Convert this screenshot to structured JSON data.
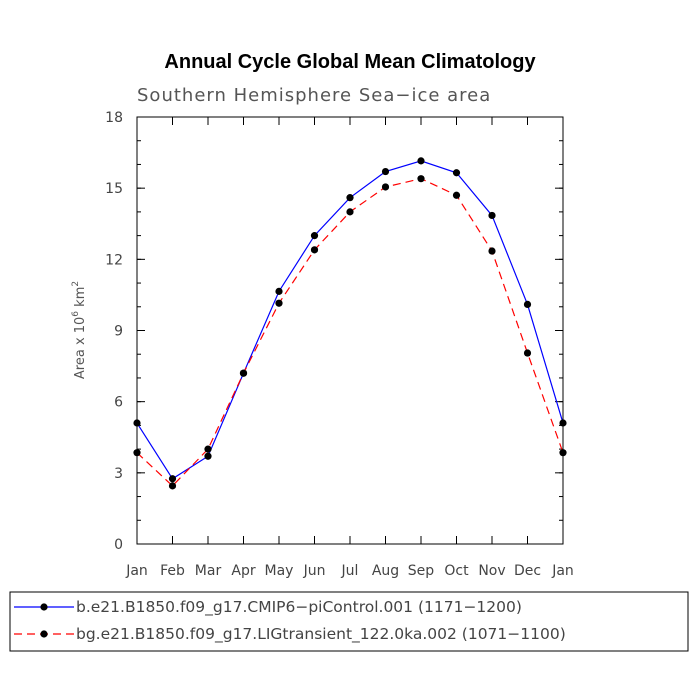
{
  "chart_data": {
    "type": "line",
    "title": "Annual Cycle Global Mean Climatology",
    "subtitle": "Southern Hemisphere Sea−ice area",
    "ylabel": {
      "prefix": "Area x 10",
      "exp": "6",
      "unit": " km",
      "unit_exp": "2"
    },
    "categories": [
      "Jan",
      "Feb",
      "Mar",
      "Apr",
      "May",
      "Jun",
      "Jul",
      "Aug",
      "Sep",
      "Oct",
      "Nov",
      "Dec",
      "Jan"
    ],
    "ylim": [
      0,
      18
    ],
    "yticks": [
      "0",
      "3",
      "6",
      "9",
      "12",
      "15",
      "18"
    ],
    "grid": false,
    "legend_position": "bottom",
    "series": [
      {
        "name": "b.e21.B1850.f09_g17.CMIP6−piControl.001 (1171−1200)",
        "color": "#0000ff",
        "style": "solid",
        "values": [
          5.1,
          2.75,
          3.7,
          7.2,
          10.65,
          13.0,
          14.6,
          15.7,
          16.15,
          15.65,
          13.85,
          10.1,
          5.1
        ]
      },
      {
        "name": "bg.e21.B1850.f09_g17.LIGtransient_122.0ka.002 (1071−1100)",
        "color": "#ff0000",
        "style": "dashed",
        "values": [
          3.85,
          2.45,
          4.0,
          7.2,
          10.15,
          12.4,
          14.0,
          15.05,
          15.4,
          14.7,
          12.35,
          8.05,
          3.85
        ]
      }
    ]
  }
}
